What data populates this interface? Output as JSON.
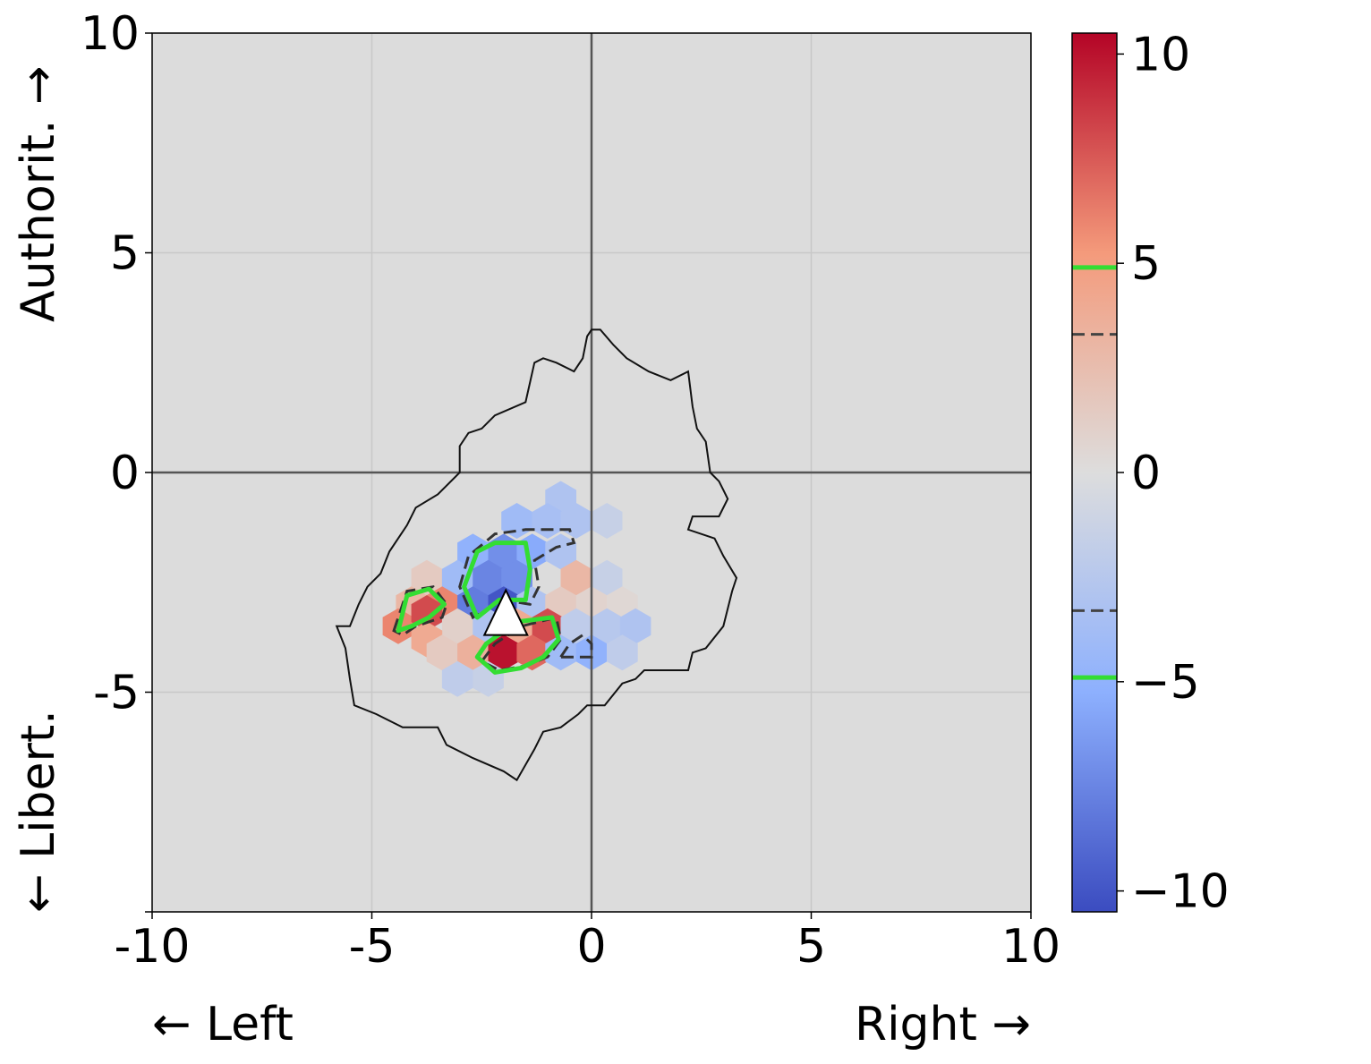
{
  "chart_data": {
    "type": "heatmap",
    "subtype": "hexbin",
    "x_axis": {
      "range": [
        -10,
        10
      ],
      "ticks": [
        -10,
        -5,
        0,
        5,
        10
      ],
      "tick_labels": [
        "-10",
        "-5",
        "0",
        "5",
        "10"
      ],
      "left_label": "← Left",
      "right_label": "Right →"
    },
    "y_axis": {
      "range": [
        -10,
        10
      ],
      "ticks": [
        -10,
        -5,
        0,
        5,
        10
      ],
      "tick_labels": [
        "",
        "-5",
        "0",
        "5",
        "10"
      ],
      "top_label": "Authorit. →",
      "bottom_label": "← Libert."
    },
    "grid": true,
    "background": "#dcdcdc",
    "colormap": "coolwarm",
    "colorbar": {
      "range": [
        -10.5,
        10.5
      ],
      "ticks": [
        10,
        5,
        0,
        -5,
        -10
      ],
      "tick_labels": [
        "10",
        "5",
        "0",
        "−5",
        "−10"
      ],
      "contour_markers": [
        {
          "value": 4.9,
          "style": "solid",
          "color": "#33dd33"
        },
        {
          "value": 3.3,
          "style": "dashed",
          "color": "#444444"
        },
        {
          "value": -3.3,
          "style": "dashed",
          "color": "#444444"
        },
        {
          "value": -4.9,
          "style": "solid",
          "color": "#33dd33"
        }
      ]
    },
    "hexbins": [
      {
        "x": -0.7,
        "y": -0.6,
        "v": -3
      },
      {
        "x": -1.7,
        "y": -1.1,
        "v": -4
      },
      {
        "x": -1.0,
        "y": -1.1,
        "v": -3.5
      },
      {
        "x": -0.35,
        "y": -1.1,
        "v": -3
      },
      {
        "x": 0.35,
        "y": -1.1,
        "v": -1.5
      },
      {
        "x": -2.7,
        "y": -1.8,
        "v": -5
      },
      {
        "x": -2.0,
        "y": -1.8,
        "v": -7
      },
      {
        "x": -1.35,
        "y": -1.8,
        "v": -5.5
      },
      {
        "x": -0.7,
        "y": -1.8,
        "v": -3
      },
      {
        "x": -3.75,
        "y": -2.4,
        "v": 1.5
      },
      {
        "x": -3.05,
        "y": -2.4,
        "v": -4
      },
      {
        "x": -2.35,
        "y": -2.4,
        "v": -7.5
      },
      {
        "x": -1.7,
        "y": -2.4,
        "v": -7
      },
      {
        "x": -0.35,
        "y": -2.4,
        "v": 3
      },
      {
        "x": 0.35,
        "y": -2.4,
        "v": -1.5
      },
      {
        "x": -4.1,
        "y": -3.0,
        "v": 3
      },
      {
        "x": -3.4,
        "y": -3.0,
        "v": 6
      },
      {
        "x": -2.7,
        "y": -3.0,
        "v": -8
      },
      {
        "x": -2.0,
        "y": -3.0,
        "v": -10
      },
      {
        "x": -1.35,
        "y": -3.0,
        "v": -3
      },
      {
        "x": -0.7,
        "y": -3.0,
        "v": 1.5
      },
      {
        "x": 0.0,
        "y": -3.0,
        "v": 0.8
      },
      {
        "x": 0.7,
        "y": -3.0,
        "v": 0.5
      },
      {
        "x": -4.4,
        "y": -3.5,
        "v": 6
      },
      {
        "x": -3.75,
        "y": -3.2,
        "v": 8
      },
      {
        "x": -3.05,
        "y": -3.5,
        "v": 1
      },
      {
        "x": -2.35,
        "y": -3.5,
        "v": -3
      },
      {
        "x": -1.7,
        "y": -3.5,
        "v": 4
      },
      {
        "x": -1.0,
        "y": -3.5,
        "v": 8
      },
      {
        "x": -0.35,
        "y": -3.5,
        "v": -2
      },
      {
        "x": 0.35,
        "y": -3.5,
        "v": -2.5
      },
      {
        "x": 1.0,
        "y": -3.5,
        "v": -3
      },
      {
        "x": -3.75,
        "y": -3.8,
        "v": 4
      },
      {
        "x": -3.4,
        "y": -4.1,
        "v": 1.5
      },
      {
        "x": -2.7,
        "y": -4.1,
        "v": 3.5
      },
      {
        "x": -2.0,
        "y": -4.1,
        "v": 10
      },
      {
        "x": -1.35,
        "y": -4.1,
        "v": 7
      },
      {
        "x": -0.7,
        "y": -4.1,
        "v": -4
      },
      {
        "x": 0.0,
        "y": -4.1,
        "v": -5
      },
      {
        "x": 0.7,
        "y": -4.1,
        "v": -2
      },
      {
        "x": -3.05,
        "y": -4.7,
        "v": -2
      },
      {
        "x": -2.35,
        "y": -4.7,
        "v": -1.5
      }
    ],
    "marker": {
      "shape": "triangle",
      "x": -1.95,
      "y": -3.25,
      "color": "#ffffff"
    },
    "outline_contour": [
      [
        -5.5,
        -3.5
      ],
      [
        -5.3,
        -3.0
      ],
      [
        -5.1,
        -2.6
      ],
      [
        -4.8,
        -2.3
      ],
      [
        -4.6,
        -1.8
      ],
      [
        -4.2,
        -1.2
      ],
      [
        -4.0,
        -0.8
      ],
      [
        -3.5,
        -0.5
      ],
      [
        -3.3,
        -0.3
      ],
      [
        -3.0,
        0.0
      ],
      [
        -3.0,
        0.6
      ],
      [
        -2.8,
        0.9
      ],
      [
        -2.5,
        1.0
      ],
      [
        -2.2,
        1.3
      ],
      [
        -1.5,
        1.6
      ],
      [
        -1.3,
        2.5
      ],
      [
        -1.1,
        2.6
      ],
      [
        -0.8,
        2.5
      ],
      [
        -0.4,
        2.3
      ],
      [
        -0.2,
        2.6
      ],
      [
        -0.1,
        3.1
      ],
      [
        0.0,
        3.25
      ],
      [
        0.2,
        3.25
      ],
      [
        0.5,
        2.9
      ],
      [
        0.8,
        2.6
      ],
      [
        1.3,
        2.3
      ],
      [
        1.8,
        2.1
      ],
      [
        2.2,
        2.3
      ],
      [
        2.3,
        1.5
      ],
      [
        2.4,
        1.0
      ],
      [
        2.6,
        0.7
      ],
      [
        2.7,
        0.0
      ],
      [
        2.9,
        -0.2
      ],
      [
        3.0,
        -0.4
      ],
      [
        3.1,
        -0.6
      ],
      [
        2.9,
        -1.0
      ],
      [
        2.3,
        -1.0
      ],
      [
        2.2,
        -1.3
      ],
      [
        2.8,
        -1.5
      ],
      [
        3.0,
        -1.9
      ],
      [
        3.3,
        -2.4
      ],
      [
        3.2,
        -2.7
      ],
      [
        3.0,
        -3.5
      ],
      [
        2.6,
        -4.0
      ],
      [
        2.3,
        -4.1
      ],
      [
        2.2,
        -4.5
      ],
      [
        1.2,
        -4.5
      ],
      [
        1.0,
        -4.7
      ],
      [
        0.7,
        -4.8
      ],
      [
        0.3,
        -5.3
      ],
      [
        -0.1,
        -5.3
      ],
      [
        -0.3,
        -5.5
      ],
      [
        -0.7,
        -5.8
      ],
      [
        -1.1,
        -5.9
      ],
      [
        -1.3,
        -6.3
      ],
      [
        -1.7,
        -7.0
      ],
      [
        -2.0,
        -6.8
      ],
      [
        -2.7,
        -6.5
      ],
      [
        -3.3,
        -6.2
      ],
      [
        -3.5,
        -5.8
      ],
      [
        -4.3,
        -5.8
      ],
      [
        -4.9,
        -5.5
      ],
      [
        -5.4,
        -5.3
      ],
      [
        -5.5,
        -4.7
      ],
      [
        -5.6,
        -4.0
      ],
      [
        -5.8,
        -3.5
      ],
      [
        -5.5,
        -3.5
      ]
    ],
    "dashed_contours": [
      [
        [
          -4.5,
          -3.6
        ],
        [
          -4.2,
          -2.7
        ],
        [
          -3.6,
          -2.6
        ],
        [
          -3.3,
          -3.0
        ],
        [
          -3.4,
          -3.3
        ],
        [
          -4.0,
          -3.5
        ],
        [
          -4.3,
          -3.7
        ],
        [
          -4.5,
          -3.6
        ]
      ],
      [
        [
          -3.0,
          -2.6
        ],
        [
          -2.8,
          -1.9
        ],
        [
          -2.2,
          -1.4
        ],
        [
          -1.5,
          -1.3
        ],
        [
          -0.5,
          -1.3
        ],
        [
          -0.4,
          -1.6
        ],
        [
          -0.8,
          -1.7
        ],
        [
          -1.3,
          -2.0
        ],
        [
          -1.2,
          -2.6
        ],
        [
          -1.4,
          -3.0
        ],
        [
          -2.0,
          -2.9
        ],
        [
          -2.7,
          -3.3
        ],
        [
          -3.0,
          -2.6
        ]
      ],
      [
        [
          -0.7,
          -4.2
        ],
        [
          -0.5,
          -3.9
        ],
        [
          -0.2,
          -3.7
        ],
        [
          0.0,
          -3.9
        ],
        [
          0.0,
          -4.2
        ],
        [
          -0.4,
          -4.2
        ],
        [
          -0.7,
          -4.2
        ]
      ],
      [
        [
          -2.5,
          -4.3
        ],
        [
          -2.2,
          -3.9
        ],
        [
          -1.6,
          -3.5
        ],
        [
          -0.8,
          -3.3
        ],
        [
          -0.7,
          -3.8
        ],
        [
          -1.0,
          -4.2
        ],
        [
          -1.5,
          -4.4
        ],
        [
          -2.1,
          -4.5
        ],
        [
          -2.5,
          -4.3
        ]
      ]
    ],
    "green_contours": [
      [
        [
          -4.4,
          -3.6
        ],
        [
          -4.2,
          -2.8
        ],
        [
          -3.7,
          -2.65
        ],
        [
          -3.35,
          -3.0
        ],
        [
          -3.7,
          -3.3
        ],
        [
          -4.1,
          -3.5
        ],
        [
          -4.4,
          -3.6
        ]
      ],
      [
        [
          -2.9,
          -2.6
        ],
        [
          -2.6,
          -1.8
        ],
        [
          -2.2,
          -1.6
        ],
        [
          -1.5,
          -1.6
        ],
        [
          -1.4,
          -2.2
        ],
        [
          -1.5,
          -2.9
        ],
        [
          -2.1,
          -2.9
        ],
        [
          -2.6,
          -3.3
        ],
        [
          -2.9,
          -2.6
        ]
      ],
      [
        [
          -2.6,
          -4.2
        ],
        [
          -2.4,
          -3.9
        ],
        [
          -1.7,
          -3.4
        ],
        [
          -0.9,
          -3.3
        ],
        [
          -0.75,
          -3.8
        ],
        [
          -1.1,
          -4.2
        ],
        [
          -1.6,
          -4.45
        ],
        [
          -2.2,
          -4.55
        ],
        [
          -2.6,
          -4.2
        ]
      ]
    ]
  }
}
